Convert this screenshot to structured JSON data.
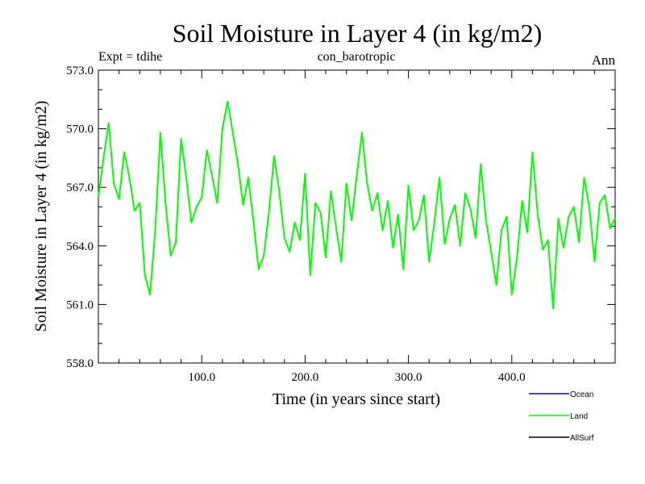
{
  "chart_data": {
    "type": "line",
    "title": "Soil Moisture in Layer 4 (in kg/m2)",
    "subtitle_left": "Expt = tdihe",
    "subtitle_center": "con_barotropic",
    "subtitle_right": "Ann",
    "xlabel": "Time (in years since start)",
    "ylabel": "Soil Moisture in Layer 4 (in kg/m2)",
    "xlim": [
      0,
      500
    ],
    "ylim": [
      558.0,
      573.0
    ],
    "x_ticks": [
      100,
      200,
      300,
      400
    ],
    "x_tick_labels": [
      "100.0",
      "200.0",
      "300.0",
      "400.0"
    ],
    "y_ticks": [
      558,
      561,
      564,
      567,
      570,
      573
    ],
    "y_tick_labels": [
      "558.0",
      "561.0",
      "564.0",
      "567.0",
      "570.0",
      "573.0"
    ],
    "legend": [
      {
        "name": "Ocean",
        "color": "#0000cc"
      },
      {
        "name": "Land",
        "color": "#00ff00"
      },
      {
        "name": "AllSurf",
        "color": "#000000"
      }
    ],
    "series": [
      {
        "name": "Land",
        "color": "#00ff00",
        "x": [
          0,
          5,
          10,
          15,
          20,
          25,
          30,
          35,
          40,
          45,
          50,
          55,
          60,
          65,
          70,
          75,
          80,
          85,
          90,
          95,
          100,
          105,
          110,
          115,
          120,
          125,
          130,
          135,
          140,
          145,
          150,
          155,
          160,
          165,
          170,
          175,
          180,
          185,
          190,
          195,
          200,
          205,
          210,
          215,
          220,
          225,
          230,
          235,
          240,
          245,
          250,
          255,
          260,
          265,
          270,
          275,
          280,
          285,
          290,
          295,
          300,
          305,
          310,
          315,
          320,
          325,
          330,
          335,
          340,
          345,
          350,
          355,
          360,
          365,
          370,
          375,
          380,
          385,
          390,
          395,
          400,
          405,
          410,
          415,
          420,
          425,
          430,
          435,
          440,
          445,
          450,
          455,
          460,
          465,
          470,
          475,
          480,
          485,
          490,
          495,
          500
        ],
        "values": [
          566.5,
          568.5,
          570.3,
          567.2,
          566.4,
          568.8,
          567.5,
          565.8,
          566.2,
          562.5,
          561.5,
          564.8,
          569.8,
          566.2,
          563.5,
          564.2,
          569.5,
          567.5,
          565.2,
          566.0,
          566.5,
          568.9,
          567.6,
          566.2,
          570.0,
          571.4,
          569.8,
          568.2,
          566.1,
          567.5,
          565.3,
          562.8,
          563.5,
          565.7,
          568.6,
          566.8,
          564.4,
          563.7,
          565.2,
          564.3,
          567.7,
          562.5,
          566.2,
          565.7,
          563.4,
          566.8,
          564.9,
          563.2,
          567.2,
          565.3,
          567.6,
          569.8,
          567.2,
          565.8,
          566.7,
          564.8,
          566.3,
          563.9,
          565.6,
          562.8,
          567.1,
          564.8,
          565.3,
          566.6,
          563.2,
          565.2,
          567.5,
          564.1,
          565.4,
          566.1,
          564.0,
          566.7,
          565.9,
          564.4,
          568.2,
          565.3,
          563.7,
          562.0,
          564.8,
          565.5,
          561.5,
          563.4,
          566.3,
          564.7,
          568.8,
          565.6,
          563.8,
          564.3,
          560.8,
          565.4,
          563.9,
          565.5,
          566.0,
          564.2,
          567.5,
          566.0,
          563.2,
          566.2,
          566.6,
          564.9,
          565.4
        ]
      }
    ]
  }
}
